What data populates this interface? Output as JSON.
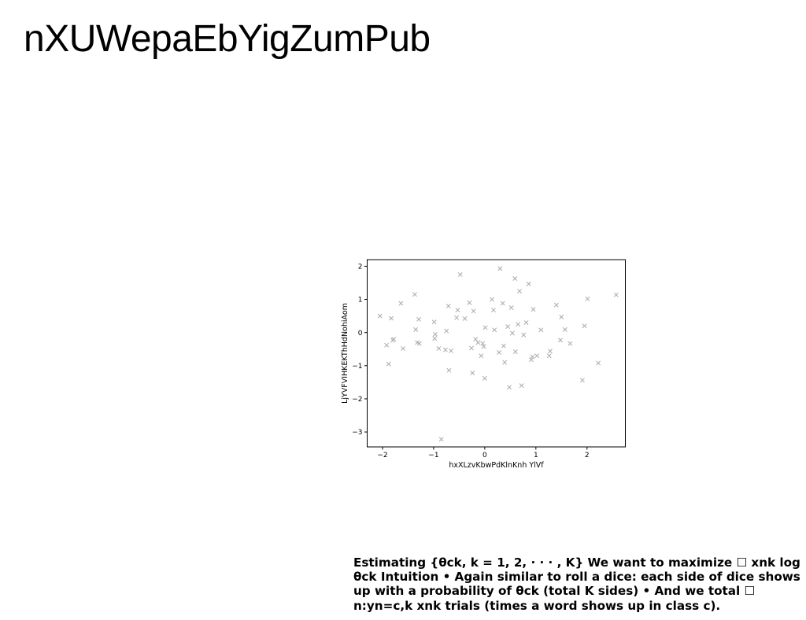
{
  "page": {
    "title": "nXUWepaEbYigZumPub",
    "caption": "Estimating {θck, k = 1, 2, · · · , K} We want to maximize ☐ xnk log θck Intuition • Again similar to roll a dice: each side of dice shows up with a probability of θck (total K sides) • And we total ☐ n:yn=c,k xnk trials (times a word shows up in class c)."
  },
  "chart_data": {
    "type": "scatter",
    "marker": "x",
    "color": "#aaaaaa",
    "title": "",
    "xlabel": "hxXLzvKbwPdKlnKnh YlVf",
    "ylabel": "LjYVFVIHKEKThHdNohiAom",
    "xlim": [
      -2.3,
      2.75
    ],
    "ylim": [
      -3.45,
      2.2
    ],
    "xticks": [
      -2,
      -1,
      0,
      1,
      2
    ],
    "yticks": [
      -3,
      -2,
      -1,
      0,
      1,
      2
    ],
    "xtick_labels": [
      "−2",
      "−1",
      "0",
      "1",
      "2"
    ],
    "ytick_labels": [
      "−3",
      "−2",
      "−1",
      "0",
      "1",
      "2"
    ],
    "grid": false,
    "series": [
      {
        "x": [
          -2.05,
          -1.92,
          -1.88,
          -1.83,
          -1.8,
          -1.78,
          -1.64,
          -1.6,
          -1.37,
          -1.35,
          -1.32,
          -1.29,
          -1.28,
          -0.99,
          -0.98,
          -0.97,
          -0.9,
          -0.85,
          -0.77,
          -0.75,
          -0.71,
          -0.7,
          -0.66,
          -0.55,
          -0.53,
          -0.48,
          -0.39,
          -0.3,
          -0.26,
          -0.24,
          -0.22,
          -0.18,
          -0.13,
          -0.07,
          -0.04,
          -0.02,
          0.0,
          0.01,
          0.14,
          0.17,
          0.19,
          0.28,
          0.3,
          0.35,
          0.37,
          0.39,
          0.45,
          0.48,
          0.52,
          0.54,
          0.59,
          0.6,
          0.65,
          0.68,
          0.72,
          0.76,
          0.81,
          0.86,
          0.91,
          0.93,
          0.95,
          1.02,
          1.1,
          1.26,
          1.28,
          1.4,
          1.48,
          1.5,
          1.57,
          1.67,
          1.91,
          1.95,
          2.01,
          2.22,
          2.57
        ],
        "y": [
          0.5,
          -0.38,
          -0.95,
          0.43,
          -0.23,
          -0.2,
          0.88,
          -0.48,
          1.15,
          0.09,
          -0.3,
          0.4,
          -0.33,
          0.32,
          -0.18,
          -0.05,
          -0.48,
          -3.22,
          -0.52,
          0.05,
          0.8,
          -1.14,
          -0.55,
          0.45,
          0.68,
          1.75,
          0.42,
          0.9,
          -0.47,
          -1.22,
          0.65,
          -0.2,
          -0.3,
          -0.7,
          -0.33,
          -0.42,
          -1.38,
          0.15,
          1.0,
          0.68,
          0.08,
          -0.6,
          1.93,
          0.88,
          -0.4,
          -0.9,
          0.18,
          -1.65,
          0.75,
          -0.02,
          1.63,
          -0.58,
          0.25,
          1.25,
          -1.6,
          -0.07,
          0.3,
          1.47,
          -0.82,
          -0.73,
          0.7,
          -0.7,
          0.08,
          -0.7,
          -0.56,
          0.83,
          -0.23,
          0.47,
          0.09,
          -0.33,
          -1.44,
          0.2,
          1.02,
          -0.92,
          1.14
        ]
      }
    ]
  }
}
